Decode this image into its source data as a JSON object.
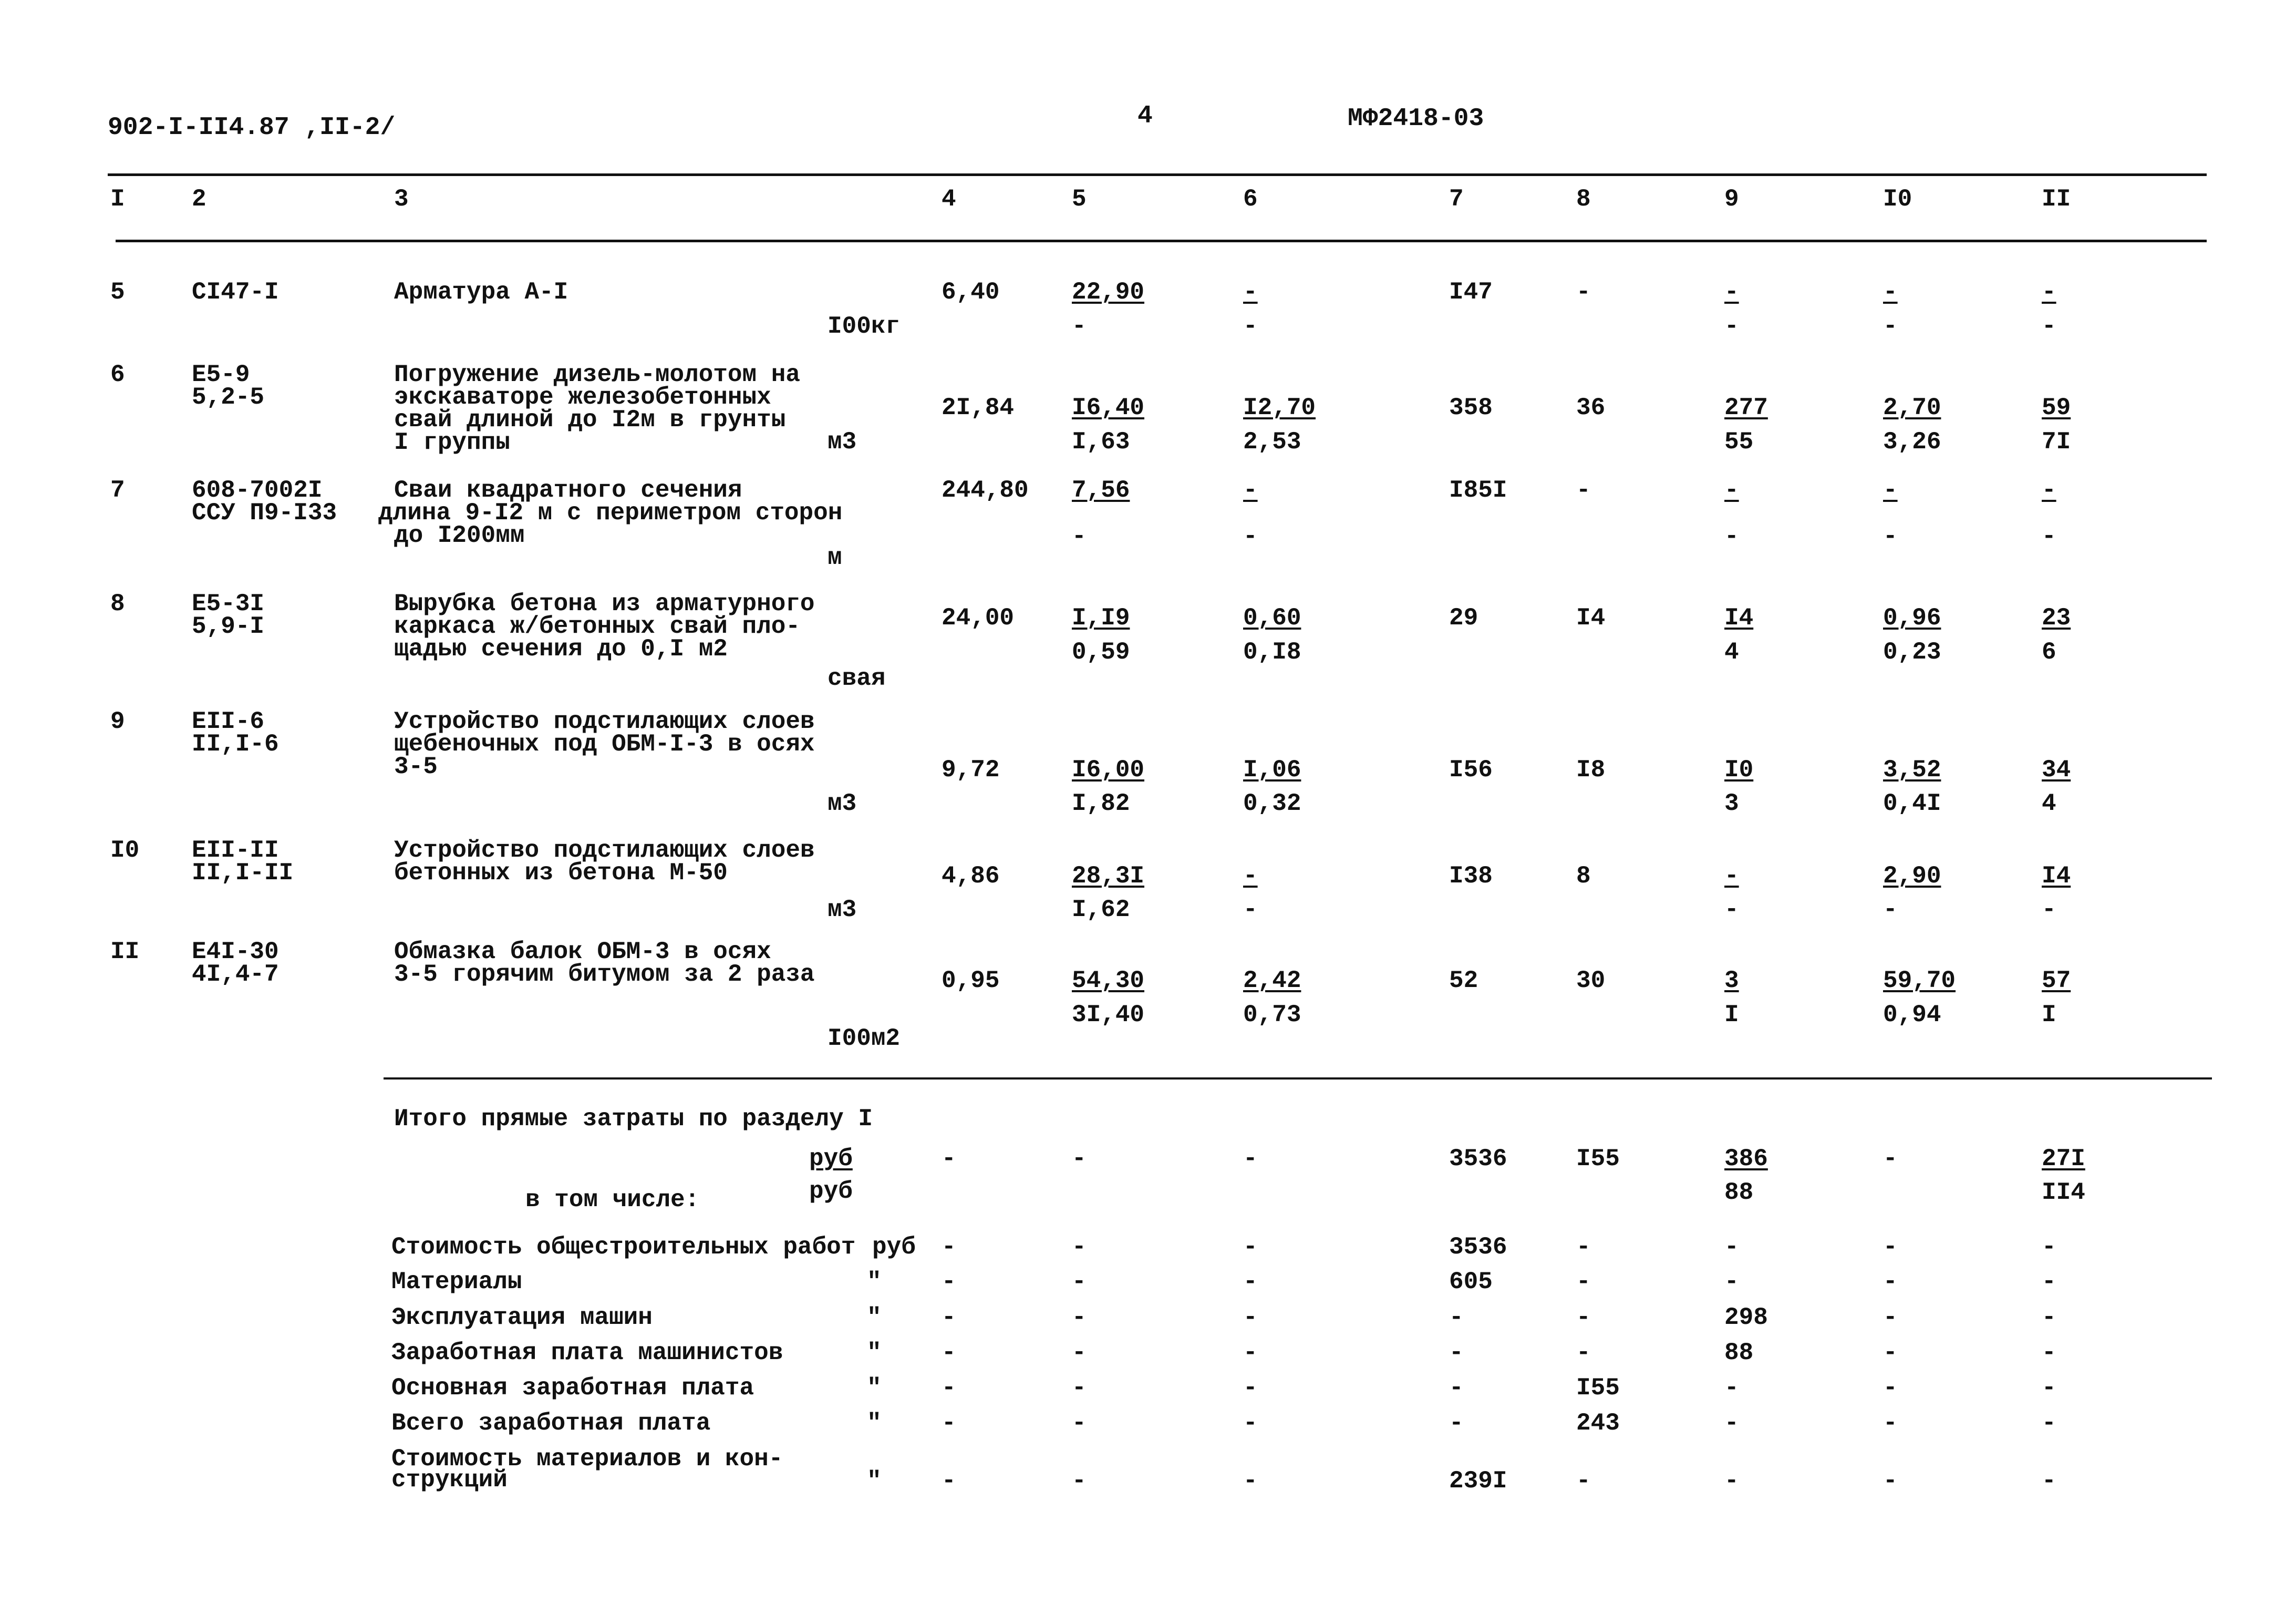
{
  "header": {
    "doc_code": "902-I-II4.87 ,II-2/",
    "page_number": "4",
    "sheet_code": "МФ2418-03"
  },
  "columns": [
    "I",
    "2",
    "3",
    "4",
    "5",
    "6",
    "7",
    "8",
    "9",
    "I0",
    "II"
  ],
  "rows": [
    {
      "num": "5",
      "code": [
        "CI47-I"
      ],
      "desc": [
        "Арматура А-I"
      ],
      "unit": "I00кг",
      "c4": "6,40",
      "c5": [
        "22,90",
        "-"
      ],
      "c6": [
        "-",
        "-"
      ],
      "c7": "I47",
      "c8": "-",
      "c9": [
        "-",
        "-"
      ],
      "c10": [
        "-",
        "-"
      ],
      "c11": [
        "-",
        "-"
      ]
    },
    {
      "num": "6",
      "code": [
        "E5-9",
        "5,2-5"
      ],
      "desc": [
        "Погружение дизель-молотом на",
        "экскаваторе железобетонных",
        "свай длиной до I2м в грунты",
        "I группы"
      ],
      "unit": "м3",
      "c4": "2I,84",
      "c5": [
        "I6,40",
        "I,63"
      ],
      "c6": [
        "I2,70",
        "2,53"
      ],
      "c7": "358",
      "c8": "36",
      "c9": [
        "277",
        "55"
      ],
      "c10": [
        "2,70",
        "3,26"
      ],
      "c11": [
        "59",
        "7I"
      ]
    },
    {
      "num": "7",
      "code": [
        "608-7002I",
        "ССУ П9-I33"
      ],
      "desc": [
        "Сваи квадратного сечения",
        "длина 9-I2 м с периметром сторон",
        "до I200мм"
      ],
      "unit": "м",
      "c4": "244,80",
      "c5": [
        "7,56",
        "-"
      ],
      "c6": [
        "-",
        "-"
      ],
      "c7": "I85I",
      "c8": "-",
      "c9": [
        "-",
        "-"
      ],
      "c10": [
        "-",
        "-"
      ],
      "c11": [
        "-",
        "-"
      ]
    },
    {
      "num": "8",
      "code": [
        "E5-3I",
        "5,9-I"
      ],
      "desc": [
        "Вырубка бетона из арматурного",
        "каркаса ж/бетонных свай пло-",
        "щадью сечения до 0,I м2"
      ],
      "unit": "свая",
      "c4": "24,00",
      "c5": [
        "I,I9",
        "0,59"
      ],
      "c6": [
        "0,60",
        "0,I8"
      ],
      "c7": "29",
      "c8": "I4",
      "c9": [
        "I4",
        "4"
      ],
      "c10": [
        "0,96",
        "0,23"
      ],
      "c11": [
        "23",
        "6"
      ]
    },
    {
      "num": "9",
      "code": [
        "EII-6",
        "II,I-6"
      ],
      "desc": [
        "Устройство подстилающих слоев",
        "щебеночных под ОБМ-I-3 в осях",
        "3-5"
      ],
      "unit": "м3",
      "c4": "9,72",
      "c5": [
        "I6,00",
        "I,82"
      ],
      "c6": [
        "I,06",
        "0,32"
      ],
      "c7": "I56",
      "c8": "I8",
      "c9": [
        "I0",
        "3"
      ],
      "c10": [
        "3,52",
        "0,4I"
      ],
      "c11": [
        "34",
        "4"
      ]
    },
    {
      "num": "I0",
      "code": [
        "EII-II",
        "II,I-II"
      ],
      "desc": [
        "Устройство подстилающих слоев",
        "бетонных из бетона М-50"
      ],
      "unit": "м3",
      "c4": "4,86",
      "c5": [
        "28,3I",
        "I,62"
      ],
      "c6": [
        "-",
        "-"
      ],
      "c7": "I38",
      "c8": "8",
      "c9": [
        "-",
        "-"
      ],
      "c10": [
        "2,90",
        "-"
      ],
      "c11": [
        "I4",
        "-"
      ]
    },
    {
      "num": "II",
      "code": [
        "E4I-30",
        "4I,4-7"
      ],
      "desc": [
        "Обмазка балок ОБМ-3 в осях",
        "3-5 горячим битумом за 2 раза"
      ],
      "unit": "I00м2",
      "c4": "0,95",
      "c5": [
        "54,30",
        "3I,40"
      ],
      "c6": [
        "2,42",
        "0,73"
      ],
      "c7": "52",
      "c8": "30",
      "c9": [
        "3",
        "I"
      ],
      "c10": [
        "59,70",
        "0,94"
      ],
      "c11": [
        "57",
        "I"
      ]
    }
  ],
  "totals": {
    "title": "Итого прямые затраты по разделу I",
    "unit_top": "руб",
    "unit_bottom": "руб",
    "including": "в том числе:",
    "c4": "-",
    "c5": "-",
    "c6": "-",
    "c7": "3536",
    "c8": "I55",
    "c9": [
      "386",
      "88"
    ],
    "c10": "-",
    "c11": [
      "27I",
      "II4"
    ]
  },
  "breakdown": [
    {
      "label": [
        "Стоимость общестроительных работ"
      ],
      "unit": "руб",
      "values": [
        "-",
        "-",
        "-",
        "3536",
        "-",
        "-",
        "-",
        "-"
      ]
    },
    {
      "label": [
        "Материалы"
      ],
      "unit": "\"",
      "values": [
        "-",
        "-",
        "-",
        "605",
        "-",
        "-",
        "-",
        "-"
      ]
    },
    {
      "label": [
        "Эксплуатация машин"
      ],
      "unit": "\"",
      "values": [
        "-",
        "-",
        "-",
        "-",
        "-",
        "298",
        "-",
        "-"
      ]
    },
    {
      "label": [
        "Заработная плата машинистов"
      ],
      "unit": "\"",
      "values": [
        "-",
        "-",
        "-",
        "-",
        "-",
        "88",
        "-",
        "-"
      ]
    },
    {
      "label": [
        "Основная заработная плата"
      ],
      "unit": "\"",
      "values": [
        "-",
        "-",
        "-",
        "-",
        "I55",
        "-",
        "-",
        "-"
      ]
    },
    {
      "label": [
        "Всего заработная плата"
      ],
      "unit": "\"",
      "values": [
        "-",
        "-",
        "-",
        "-",
        "243",
        "-",
        "-",
        "-"
      ]
    },
    {
      "label": [
        "Стоимость материалов и кон-",
        "струкций"
      ],
      "unit": "\"",
      "values": [
        "-",
        "-",
        "-",
        "239I",
        "-",
        "-",
        "-",
        "-"
      ]
    }
  ]
}
